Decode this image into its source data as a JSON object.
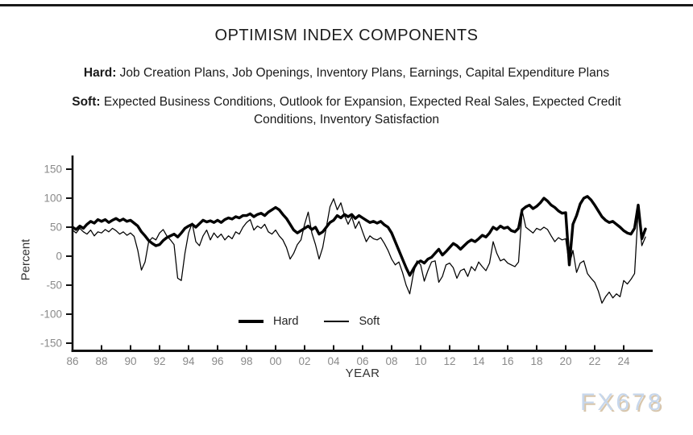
{
  "header": {
    "title": "OPTIMISM INDEX COMPONENTS",
    "hard_label": "Hard:",
    "hard_text": " Job Creation Plans, Job Openings, Inventory Plans, Earnings, Capital Expenditure Plans",
    "soft_label": "Soft:",
    "soft_text": " Expected Business Conditions, Outlook for Expansion, Expected Real Sales, Expected Credit Conditions, Inventory Satisfaction"
  },
  "watermark": "FX678",
  "colors": {
    "line": "#000000",
    "axis": "#111111",
    "tick_label": "#8a8a8a",
    "axis_title": "#333333",
    "watermark_fill": "#c7d7ec",
    "watermark_shadow": "#cbb390"
  },
  "chart_data": {
    "type": "line",
    "title": "OPTIMISM INDEX COMPONENTS",
    "xlabel": "YEAR",
    "ylabel": "Percent",
    "ylim": [
      -150,
      150
    ],
    "xlim": [
      1986,
      2026
    ],
    "grid": false,
    "legend": [
      "Hard",
      "Soft"
    ],
    "legend_position": "bottom-center-inside",
    "y_ticks": [
      150,
      100,
      50,
      0,
      -50,
      -100,
      -150
    ],
    "x_tick_labels": [
      "86",
      "88",
      "90",
      "92",
      "94",
      "96",
      "98",
      "00",
      "02",
      "04",
      "06",
      "08",
      "10",
      "12",
      "14",
      "16",
      "18",
      "20",
      "22",
      "24"
    ],
    "x_tick_years": [
      1986,
      1988,
      1990,
      1992,
      1994,
      1996,
      1998,
      2000,
      2002,
      2004,
      2006,
      2008,
      2010,
      2012,
      2014,
      2016,
      2018,
      2020,
      2022,
      2024
    ],
    "x_start": 1986.0,
    "x_step": 0.25,
    "series": [
      {
        "name": "Hard",
        "stroke_width": 3.4,
        "values": [
          50,
          46,
          52,
          48,
          55,
          60,
          57,
          63,
          60,
          63,
          58,
          62,
          65,
          61,
          64,
          60,
          62,
          57,
          52,
          42,
          35,
          27,
          22,
          18,
          20,
          27,
          32,
          35,
          38,
          33,
          40,
          48,
          52,
          55,
          50,
          56,
          62,
          59,
          61,
          58,
          62,
          58,
          63,
          66,
          64,
          68,
          66,
          70,
          70,
          73,
          68,
          72,
          74,
          70,
          76,
          80,
          84,
          80,
          72,
          65,
          55,
          45,
          40,
          44,
          48,
          52,
          46,
          50,
          38,
          42,
          50,
          58,
          62,
          70,
          66,
          72,
          68,
          72,
          65,
          70,
          66,
          62,
          58,
          60,
          57,
          60,
          54,
          50,
          40,
          25,
          10,
          -5,
          -20,
          -33,
          -22,
          -12,
          -8,
          -12,
          -5,
          -2,
          5,
          12,
          2,
          8,
          15,
          22,
          18,
          12,
          18,
          24,
          28,
          25,
          30,
          36,
          33,
          40,
          50,
          46,
          52,
          48,
          50,
          44,
          42,
          48,
          80,
          85,
          88,
          82,
          86,
          92,
          100,
          95,
          88,
          84,
          78,
          74,
          75,
          -15,
          55,
          70,
          90,
          100,
          103,
          97,
          88,
          78,
          68,
          62,
          58,
          60,
          55,
          50,
          44,
          40,
          38,
          48,
          88,
          30,
          47
        ]
      },
      {
        "name": "Soft",
        "stroke_width": 1.25,
        "values": [
          45,
          40,
          48,
          42,
          38,
          45,
          35,
          42,
          40,
          46,
          42,
          48,
          44,
          38,
          42,
          36,
          40,
          34,
          10,
          -24,
          -10,
          25,
          32,
          28,
          40,
          46,
          35,
          28,
          20,
          -38,
          -42,
          5,
          40,
          57,
          25,
          18,
          35,
          45,
          28,
          40,
          32,
          38,
          28,
          35,
          30,
          42,
          38,
          50,
          58,
          63,
          45,
          52,
          48,
          55,
          42,
          38,
          45,
          35,
          28,
          15,
          -5,
          5,
          20,
          28,
          55,
          76,
          40,
          20,
          -5,
          15,
          50,
          85,
          99,
          80,
          92,
          70,
          55,
          68,
          48,
          60,
          42,
          25,
          35,
          30,
          28,
          32,
          22,
          10,
          -5,
          -15,
          -10,
          -28,
          -50,
          -65,
          -30,
          -8,
          -15,
          -43,
          -25,
          -10,
          -8,
          -45,
          -35,
          -15,
          -12,
          -20,
          -38,
          -25,
          -22,
          -35,
          -18,
          -25,
          -10,
          -18,
          -25,
          -12,
          25,
          5,
          -8,
          -5,
          -12,
          -15,
          -18,
          -10,
          78,
          50,
          45,
          40,
          48,
          45,
          50,
          46,
          35,
          25,
          32,
          28,
          30,
          -15,
          10,
          -28,
          -12,
          -8,
          -30,
          -38,
          -45,
          -60,
          -81,
          -70,
          -62,
          -72,
          -65,
          -70,
          -42,
          -48,
          -40,
          -30,
          80,
          18,
          33
        ]
      }
    ]
  }
}
